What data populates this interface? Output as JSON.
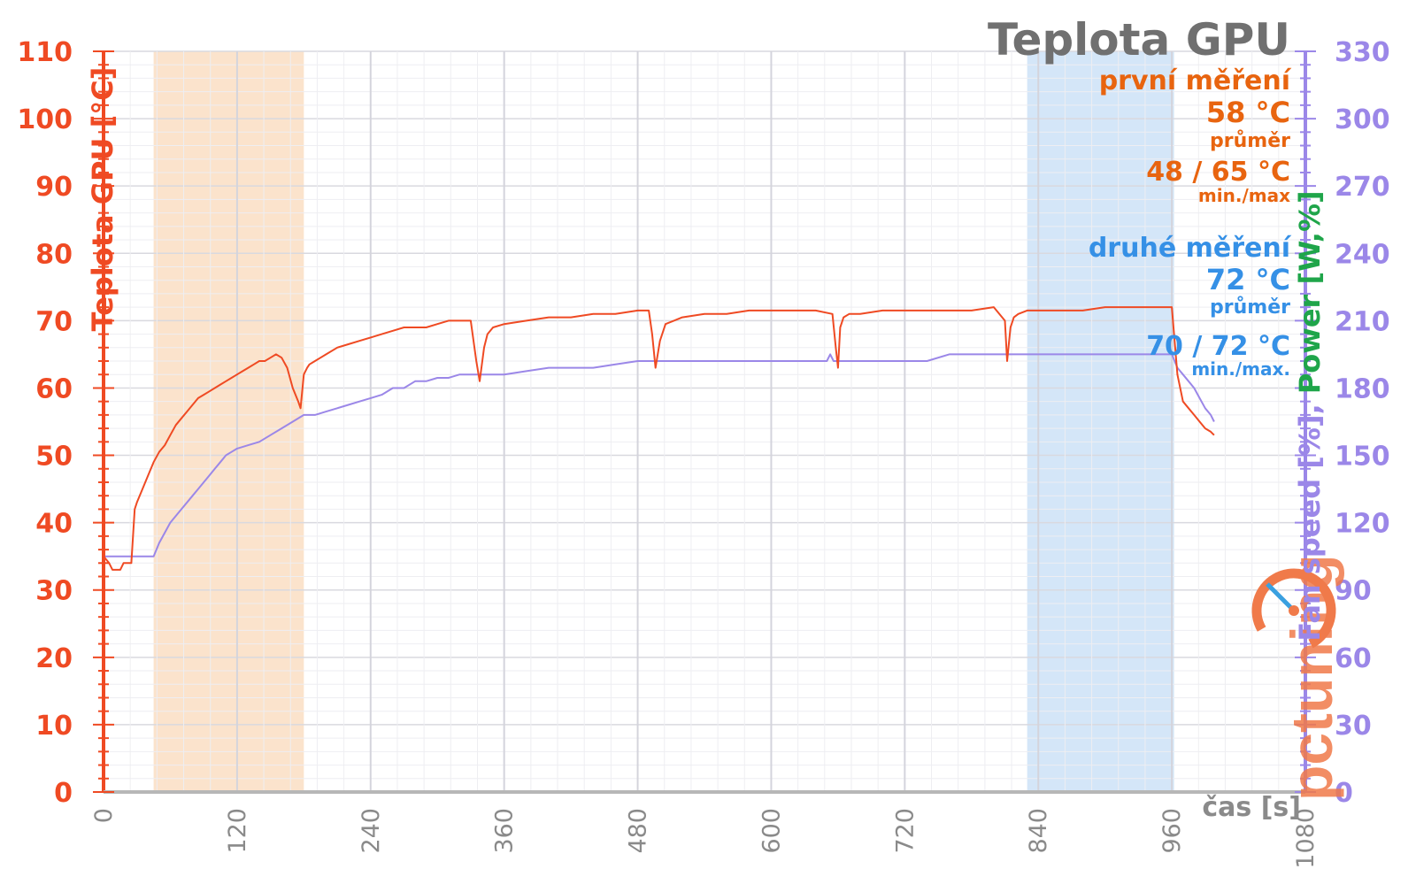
{
  "chart_data": {
    "type": "line",
    "title": "Teplota GPU",
    "xlabel": "čas [s]",
    "ylabel_left": "Teplota GPU [°C]",
    "ylabel_right_parts": [
      "Fan speed [%], ",
      "Power [W,%]"
    ],
    "xlim": [
      0,
      1080
    ],
    "ylim_left": [
      0,
      110
    ],
    "ylim_right": [
      0,
      330
    ],
    "x_ticks": [
      "0",
      "120",
      "240",
      "360",
      "480",
      "600",
      "720",
      "840",
      "960",
      "1080"
    ],
    "y_ticks_left": [
      "0",
      "10",
      "20",
      "30",
      "40",
      "50",
      "60",
      "70",
      "80",
      "90",
      "100",
      "110"
    ],
    "y_ticks_right": [
      "0",
      "30",
      "60",
      "90",
      "120",
      "150",
      "180",
      "210",
      "240",
      "270",
      "300",
      "330"
    ],
    "grid": true,
    "highlight_regions": [
      {
        "from": 45,
        "to": 180,
        "color": "#fbe3cc"
      },
      {
        "from": 830,
        "to": 962,
        "color": "#d4e6f8"
      }
    ],
    "series": [
      {
        "axis": "left",
        "color": "#ef4a23",
        "x": [
          0,
          5,
          8,
          15,
          18,
          25,
          28,
          30,
          35,
          40,
          45,
          50,
          55,
          60,
          65,
          70,
          75,
          80,
          85,
          90,
          95,
          100,
          105,
          110,
          115,
          120,
          125,
          130,
          135,
          140,
          145,
          150,
          155,
          160,
          165,
          170,
          175,
          177,
          180,
          183,
          185,
          190,
          195,
          200,
          210,
          220,
          230,
          240,
          250,
          260,
          270,
          280,
          290,
          300,
          310,
          320,
          330,
          335,
          338,
          342,
          345,
          350,
          360,
          380,
          400,
          420,
          440,
          460,
          480,
          490,
          493,
          496,
          500,
          505,
          520,
          540,
          560,
          580,
          600,
          620,
          640,
          655,
          658,
          660,
          662,
          665,
          670,
          680,
          700,
          720,
          740,
          760,
          780,
          800,
          810,
          812,
          815,
          818,
          822,
          830,
          840,
          860,
          880,
          900,
          920,
          940,
          955,
          960,
          962,
          965,
          970,
          975,
          980,
          985,
          990,
          995,
          998
        ],
        "y": [
          35,
          34,
          33,
          33,
          34,
          34,
          42,
          43,
          45,
          47,
          49,
          50.5,
          51.5,
          53,
          54.5,
          55.5,
          56.5,
          57.5,
          58.5,
          59,
          59.5,
          60,
          60.5,
          61,
          61.5,
          62,
          62.5,
          63,
          63.5,
          64,
          64,
          64.5,
          65,
          64.5,
          63,
          60,
          58,
          57,
          62,
          63,
          63.5,
          64,
          64.5,
          65,
          66,
          66.5,
          67,
          67.5,
          68,
          68.5,
          69,
          69,
          69,
          69.5,
          70,
          70,
          70,
          64,
          61,
          66,
          68,
          69,
          69.5,
          70,
          70.5,
          70.5,
          71,
          71,
          71.5,
          71.5,
          68,
          63,
          67,
          69.5,
          70.5,
          71,
          71,
          71.5,
          71.5,
          71.5,
          71.5,
          71,
          66,
          63,
          69,
          70.5,
          71,
          71,
          71.5,
          71.5,
          71.5,
          71.5,
          71.5,
          72,
          70,
          64,
          69,
          70.5,
          71,
          71.5,
          71.5,
          71.5,
          71.5,
          72,
          72,
          72,
          72,
          72,
          68,
          62,
          58,
          57,
          56,
          55,
          54,
          53.5,
          53
        ]
      },
      {
        "axis": "left",
        "color": "#9b87e8",
        "x": [
          0,
          20,
          40,
          45,
          50,
          55,
          60,
          65,
          70,
          75,
          80,
          85,
          90,
          95,
          100,
          105,
          110,
          115,
          120,
          130,
          140,
          150,
          160,
          170,
          180,
          190,
          200,
          210,
          220,
          230,
          240,
          250,
          260,
          270,
          280,
          290,
          300,
          310,
          320,
          330,
          340,
          350,
          360,
          380,
          400,
          420,
          440,
          460,
          480,
          500,
          520,
          540,
          560,
          580,
          600,
          620,
          640,
          650,
          653,
          656,
          660,
          680,
          700,
          720,
          740,
          760,
          780,
          800,
          820,
          840,
          860,
          880,
          900,
          920,
          940,
          960,
          965,
          970,
          975,
          980,
          985,
          990,
          995,
          998
        ],
        "y": [
          35,
          35,
          35,
          35,
          37,
          38.5,
          40,
          41,
          42,
          43,
          44,
          45,
          46,
          47,
          48,
          49,
          50,
          50.5,
          51,
          51.5,
          52,
          53,
          54,
          55,
          56,
          56,
          56.5,
          57,
          57.5,
          58,
          58.5,
          59,
          60,
          60,
          61,
          61,
          61.5,
          61.5,
          62,
          62,
          62,
          62,
          62,
          62.5,
          63,
          63,
          63,
          63.5,
          64,
          64,
          64,
          64,
          64,
          64,
          64,
          64,
          64,
          64,
          65,
          64,
          64,
          64,
          64,
          64,
          64,
          65,
          65,
          65,
          65,
          65,
          65,
          65,
          65,
          65,
          65,
          65,
          63,
          62,
          61,
          60,
          58.5,
          57,
          56,
          55
        ]
      }
    ],
    "annotations": [
      {
        "text": "první měření",
        "color": "#e8640f",
        "size": 30
      },
      {
        "text": "58 °C",
        "color": "#e8640f",
        "size": 32
      },
      {
        "text": "průměr",
        "color": "#e8640f",
        "size": 22
      },
      {
        "text": "48 / 65 °C",
        "color": "#e8640f",
        "size": 30
      },
      {
        "text": "min./max",
        "color": "#e8640f",
        "size": 20
      },
      {
        "text": "druhé měření",
        "color": "#3590e6",
        "size": 30
      },
      {
        "text": "72 °C",
        "color": "#3590e6",
        "size": 32
      },
      {
        "text": "průměr",
        "color": "#3590e6",
        "size": 22
      },
      {
        "text": "70 / 72 °C",
        "color": "#3590e6",
        "size": 30
      },
      {
        "text": "min./max.",
        "color": "#3590e6",
        "size": 20
      }
    ],
    "watermark": "pctuning"
  },
  "colors": {
    "left_axis": "#ef4a23",
    "right_axis": "#9b87e8",
    "power_label": "#1fa54a",
    "title": "#707070",
    "xaxis": "#b7b7b7",
    "xtick_text": "#8a8a8a"
  }
}
